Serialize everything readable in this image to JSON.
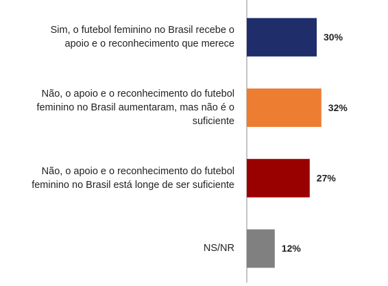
{
  "chart_data": {
    "type": "barh",
    "categories": [
      "Sim, o futebol feminino no Brasil recebe o apoio e o reconhecimento que merece",
      "Não, o apoio e o reconhecimento do futebol feminino no Brasil aumentaram, mas não é o suficiente",
      "Não, o apoio e o reconhecimento do futebol feminino no Brasil está longe de ser suficiente",
      "NS/NR"
    ],
    "values": [
      30,
      32,
      27,
      12
    ],
    "value_labels": [
      "30%",
      "32%",
      "27%",
      "12%"
    ],
    "colors": [
      "#1f2d6b",
      "#ed7d31",
      "#990000",
      "#808080"
    ],
    "xlim": [
      0,
      60
    ]
  }
}
